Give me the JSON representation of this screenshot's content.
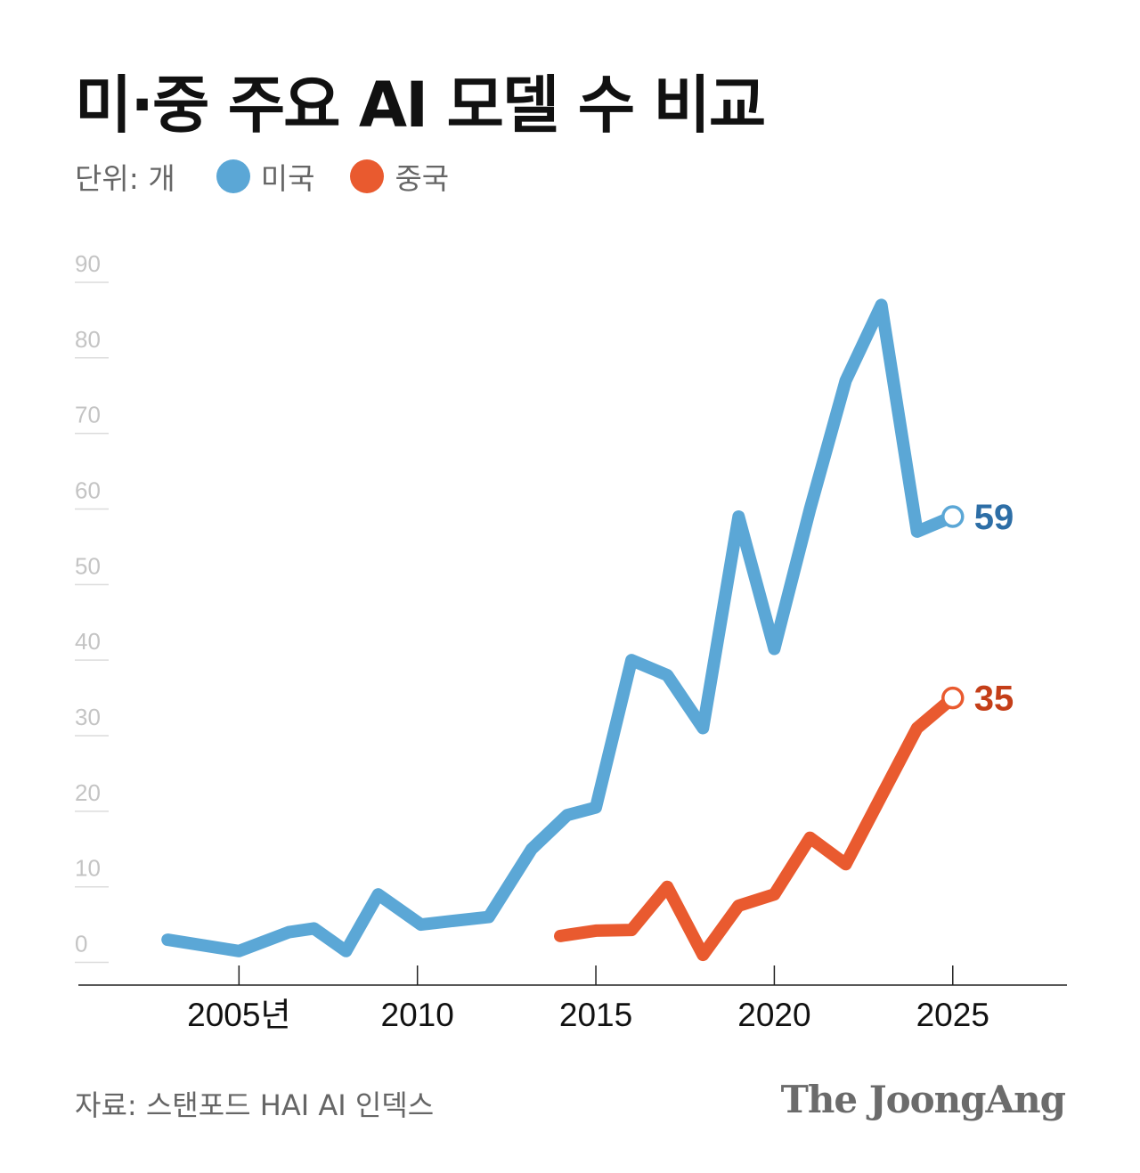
{
  "title": "미·중 주요 AI 모델 수 비교",
  "legend": {
    "unit": "단위: 개",
    "items": [
      {
        "label": "미국",
        "color": "#5ba7d6"
      },
      {
        "label": "중국",
        "color": "#e95a2f"
      }
    ]
  },
  "chart_data": {
    "type": "line",
    "ylim": [
      -3,
      92
    ],
    "xlim": [
      2000.5,
      2028.2
    ],
    "y_ticks": [
      0,
      10,
      20,
      30,
      40,
      50,
      60,
      70,
      80,
      90
    ],
    "x_ticks": [
      {
        "value": 2005,
        "label": "2005년"
      },
      {
        "value": 2010,
        "label": "2010"
      },
      {
        "value": 2015,
        "label": "2015"
      },
      {
        "value": 2020,
        "label": "2020"
      },
      {
        "value": 2025,
        "label": "2025"
      }
    ],
    "grid": false,
    "series": [
      {
        "name": "미국",
        "color": "#5ba7d6",
        "label_color": "#2d6ea6",
        "end_label": "59",
        "points": [
          [
            2003,
            3
          ],
          [
            2005,
            1.5
          ],
          [
            2006.4,
            4
          ],
          [
            2007.1,
            4.5
          ],
          [
            2008,
            1.5
          ],
          [
            2008.9,
            9
          ],
          [
            2010.1,
            5
          ],
          [
            2011,
            5.5
          ],
          [
            2012,
            6
          ],
          [
            2013.2,
            15
          ],
          [
            2014.2,
            19.5
          ],
          [
            2015,
            20.5
          ],
          [
            2016,
            40
          ],
          [
            2017,
            38
          ],
          [
            2018,
            31
          ],
          [
            2019,
            59
          ],
          [
            2020,
            41.5
          ],
          [
            2021,
            60
          ],
          [
            2022,
            77
          ],
          [
            2023,
            87
          ],
          [
            2024,
            57
          ],
          [
            2025,
            59
          ]
        ]
      },
      {
        "name": "중국",
        "color": "#e95a2f",
        "label_color": "#c43e18",
        "end_label": "35",
        "points": [
          [
            2014,
            3.5
          ],
          [
            2015,
            4.2
          ],
          [
            2016,
            4.3
          ],
          [
            2017,
            10
          ],
          [
            2018,
            1
          ],
          [
            2019,
            7.5
          ],
          [
            2020,
            9
          ],
          [
            2021,
            16.5
          ],
          [
            2022,
            13
          ],
          [
            2023,
            22
          ],
          [
            2024,
            31
          ],
          [
            2025,
            35
          ]
        ]
      }
    ]
  },
  "source": "자료: 스탠포드 HAI AI 인덱스",
  "brand": "The JoongAng"
}
